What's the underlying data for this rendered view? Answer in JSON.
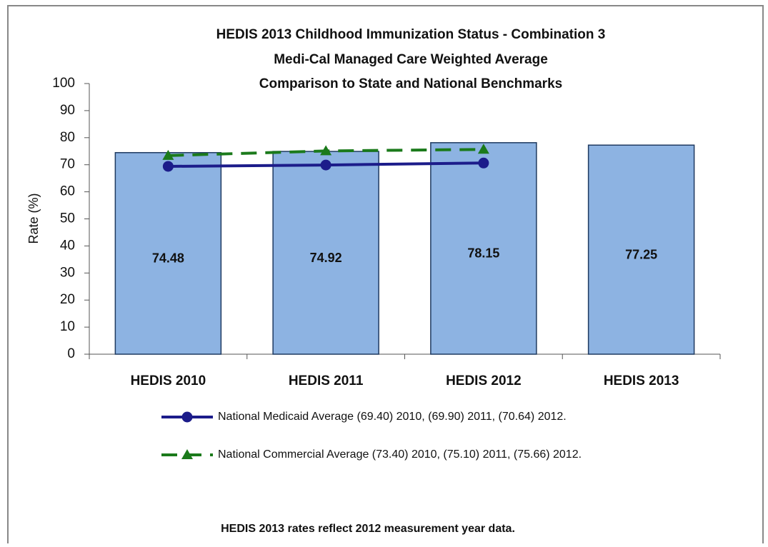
{
  "chart_data": {
    "type": "bar",
    "title": "HEDIS 2013 Childhood Immunization Status - Combination 3",
    "subtitle": [
      "Medi-Cal Managed Care Weighted Average",
      "Comparison to State and National Benchmarks"
    ],
    "y_label": "Rate (%)",
    "categories": [
      "HEDIS 2010",
      "HEDIS 2011",
      "HEDIS 2012",
      "HEDIS 2013"
    ],
    "values": [
      74.48,
      74.92,
      78.15,
      77.25
    ],
    "color": "#8db3e2",
    "series": [
      {
        "name": "National Medicaid Average (69.40) 2010, (69.90) 2011, (70.64) 2012.",
        "color": "#1c1c8a",
        "values": [
          69.4,
          69.9,
          70.64,
          null
        ],
        "marker": "circle",
        "dash": false
      },
      {
        "name": "National Commercial Average (73.40) 2010, (75.10) 2011, (75.66) 2012.",
        "color": "#1b7a1b",
        "values": [
          73.4,
          75.1,
          75.66,
          null
        ],
        "marker": "triangle",
        "dash": true
      }
    ],
    "ylim": [
      0,
      100
    ],
    "yticks": [
      0,
      10,
      20,
      30,
      40,
      50,
      60,
      70,
      80,
      90,
      100
    ],
    "footnote": "HEDIS 2013 rates reflect 2012 measurement year data."
  }
}
